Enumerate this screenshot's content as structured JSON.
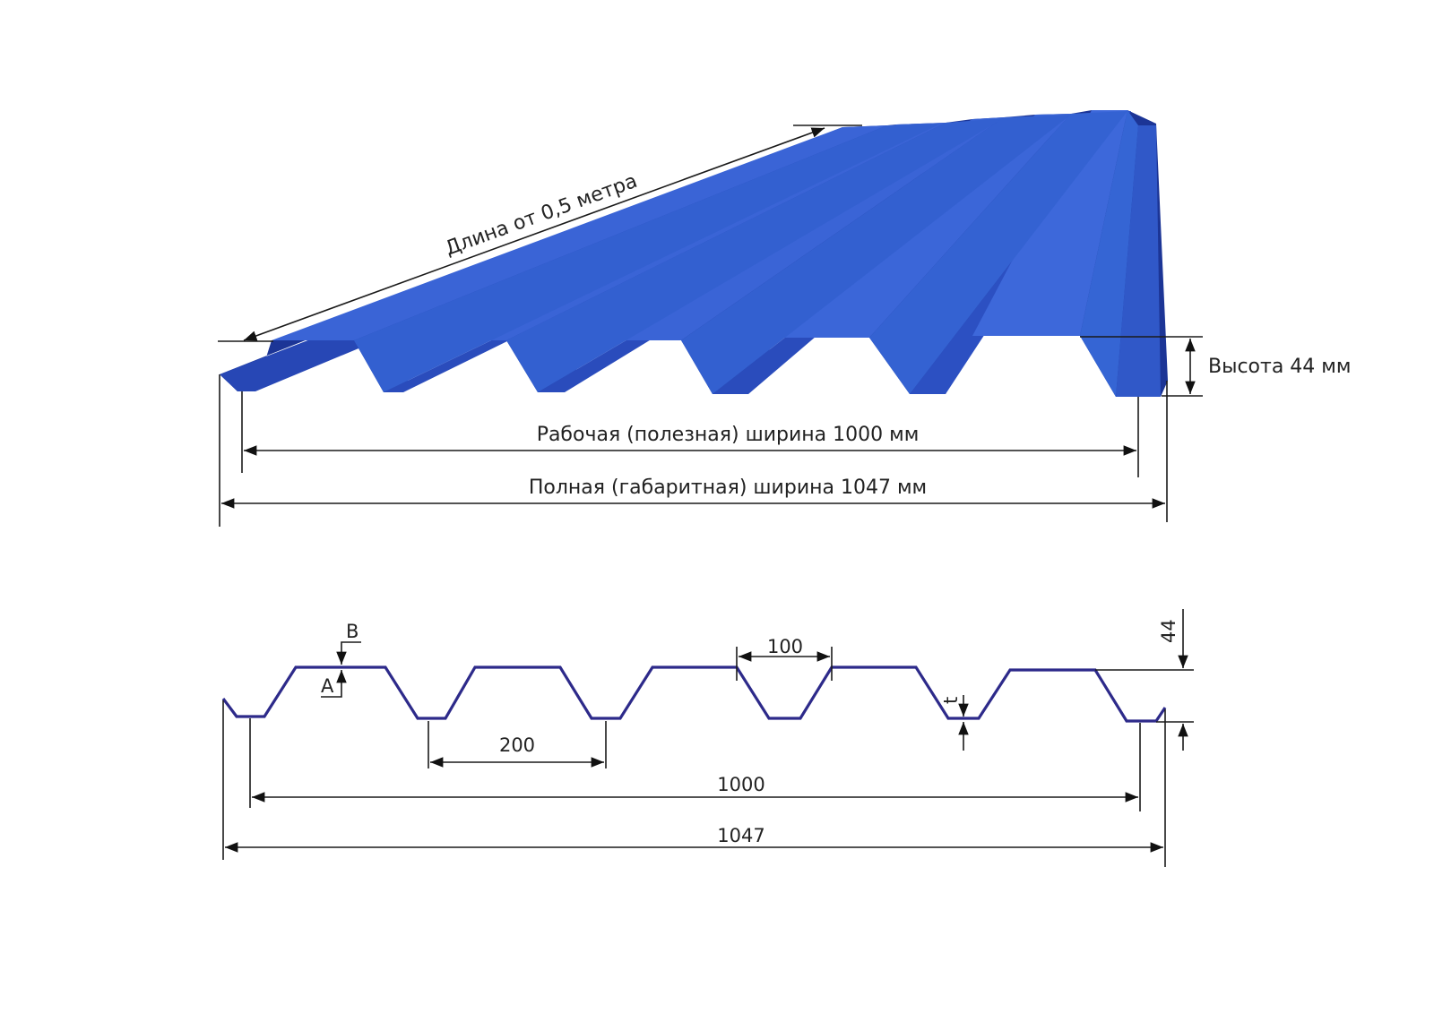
{
  "sheet_view": {
    "length_label": "Длина от 0,5 метра",
    "height_label": "Высота 44 мм",
    "working_width_label": "Рабочая (полезная) ширина 1000 мм",
    "full_width_label": "Полная (габаритная) ширина 1047 мм",
    "sheet_color": "#2a52c8"
  },
  "profile_view": {
    "label_b": "B",
    "label_a": "A",
    "label_t": "t",
    "dim_top": "100",
    "dim_pitch": "200",
    "dim_working": "1000",
    "dim_full": "1047",
    "dim_height": "44",
    "profile_color": "#2d2a8a"
  }
}
